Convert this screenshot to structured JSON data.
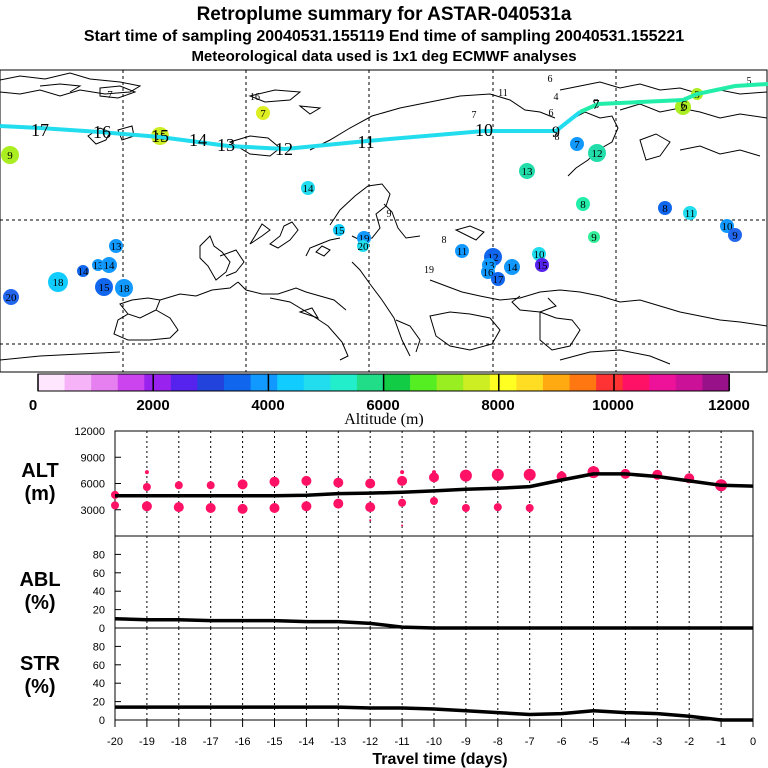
{
  "header": {
    "title": "Retroplume summary for ASTAR-040531a",
    "line2": "Start time of sampling 20040531.155119     End time of sampling 20040531.155221",
    "line3": "Meteorological data used is 1x1 deg ECMWF analyses"
  },
  "colorbar": {
    "title": "Altitude (m)",
    "tick_labels": [
      "0",
      "2000",
      "4000",
      "6000",
      "8000",
      "10000",
      "12000"
    ],
    "colors": [
      "#ffe6ff",
      "#f7b3f7",
      "#e680f0",
      "#cc44ee",
      "#9922ee",
      "#5522ee",
      "#2244dd",
      "#1166ee",
      "#1199ff",
      "#11ccff",
      "#22ddee",
      "#22eecc",
      "#22dd88",
      "#11cc44",
      "#55ee22",
      "#99ee22",
      "#ccee22",
      "#ffff22",
      "#ffdd22",
      "#ffaa11",
      "#ff7711",
      "#ff3333",
      "#ff1166",
      "#ee1199",
      "#cc1199",
      "#991188"
    ]
  },
  "map": {
    "tracks": [
      {
        "name": "cyan-track",
        "color": "#22ddee",
        "labels": [
          "17",
          "16",
          "15",
          "14",
          "13",
          "12",
          "11",
          "10",
          "9",
          "8",
          "7"
        ]
      },
      {
        "name": "green-track",
        "color": "#22eeaa",
        "labels": [
          "7",
          "6",
          "5",
          "4",
          "3",
          "2"
        ]
      }
    ],
    "markers": [
      {
        "label": "9",
        "color": "#aaee22"
      },
      {
        "label": "15",
        "color": "#ccee22"
      },
      {
        "label": "7",
        "color": "#ddee22"
      },
      {
        "label": "16",
        "color": "#ccee22"
      },
      {
        "label": "11",
        "color": "#ffee22"
      },
      {
        "label": "6",
        "color": "#ddee22"
      },
      {
        "label": "4",
        "color": "#22dd88"
      },
      {
        "label": "7",
        "color": "#aaee22"
      },
      {
        "label": "6",
        "color": "#aaee22"
      },
      {
        "label": "9",
        "color": "#22ddee"
      },
      {
        "label": "8",
        "color": "#ffffff"
      },
      {
        "label": "7",
        "color": "#1199ff"
      },
      {
        "label": "12",
        "color": "#22ddaa"
      },
      {
        "label": "13",
        "color": "#22ddaa"
      },
      {
        "label": "14",
        "color": "#22ddee"
      },
      {
        "label": "8",
        "color": "#22eeaa"
      },
      {
        "label": "9",
        "color": "#33ee99"
      },
      {
        "label": "8",
        "color": "#1166ee"
      },
      {
        "label": "11",
        "color": "#22ddee"
      },
      {
        "label": "10",
        "color": "#1199ff"
      },
      {
        "label": "9",
        "color": "#2266ee"
      },
      {
        "label": "2",
        "color": "#aaee22"
      },
      {
        "label": "3",
        "color": "#aaee22"
      },
      {
        "label": "5",
        "color": "#ffff22"
      },
      {
        "label": "15",
        "color": "#11ccff"
      },
      {
        "label": "19",
        "color": "#1199ff"
      },
      {
        "label": "20",
        "color": "#22ddee"
      },
      {
        "label": "9",
        "color": "#ffffff"
      },
      {
        "label": "8",
        "color": "#ffffff"
      },
      {
        "label": "11",
        "color": "#1199ff"
      },
      {
        "label": "12",
        "color": "#1166ee"
      },
      {
        "label": "13",
        "color": "#1199ff"
      },
      {
        "label": "16",
        "color": "#1199ff"
      },
      {
        "label": "14",
        "color": "#1199ff"
      },
      {
        "label": "10",
        "color": "#22ddee"
      },
      {
        "label": "15",
        "color": "#5522ee"
      },
      {
        "label": "18",
        "color": "#11ccff"
      },
      {
        "label": "13",
        "color": "#1199ff"
      },
      {
        "label": "13",
        "color": "#1199ff"
      },
      {
        "label": "14",
        "color": "#1166ee"
      },
      {
        "label": "14",
        "color": "#1199ff"
      },
      {
        "label": "15",
        "color": "#1166ee"
      },
      {
        "label": "18",
        "color": "#1199ff"
      },
      {
        "label": "17",
        "color": "#1166ee"
      },
      {
        "label": "19",
        "color": "#2244dd"
      },
      {
        "label": "20",
        "color": "#2266ee"
      }
    ]
  },
  "chart_data": {
    "type": "line",
    "xlabel": "Travel time (days)",
    "x": [
      -20,
      -19,
      -18,
      -17,
      -16,
      -15,
      -14,
      -13,
      -12,
      -11,
      -10,
      -9,
      -8,
      -7,
      -6,
      -5,
      -4,
      -3,
      -2,
      -1,
      0
    ],
    "xtick_labels": [
      "-20",
      "-19",
      "-18",
      "-17",
      "-16",
      "-15",
      "-14",
      "-13",
      "-12",
      "-11",
      "-10",
      "-9",
      "-8",
      "-7",
      "-6",
      "-5",
      "-4",
      "-3",
      "-2",
      "-1",
      "0"
    ],
    "panels": [
      {
        "id": "alt",
        "label_line1": "ALT",
        "label_line2": "(m)",
        "ylim": [
          0,
          12000
        ],
        "yticks": [
          3000,
          6000,
          9000,
          12000
        ],
        "ytick_labels": [
          "3000",
          "6000",
          "9000",
          "12000"
        ],
        "series": [
          {
            "name": "mean altitude",
            "values": [
              4600,
              4600,
              4600,
              4600,
              4600,
              4600,
              4650,
              4850,
              4900,
              5000,
              5150,
              5350,
              5450,
              5650,
              6400,
              7100,
              7100,
              6800,
              6300,
              5800,
              5700
            ]
          }
        ],
        "scatter": {
          "color": "#ff1166",
          "x": [
            -19,
            -18,
            -17,
            -16,
            -15,
            -14,
            -13,
            -12,
            -11,
            -10,
            -9,
            -8,
            -7,
            -6,
            -5,
            -4,
            -3,
            -2,
            -1,
            -19,
            -18,
            -17,
            -16,
            -15,
            -14,
            -13,
            -12,
            -11,
            -10,
            -9,
            -8,
            -7,
            -19,
            -11,
            -10,
            -8,
            -7,
            -6,
            -12,
            -11,
            -20,
            -20
          ],
          "y": [
            5600,
            5800,
            5800,
            5900,
            6200,
            6300,
            6100,
            6000,
            6300,
            6700,
            6900,
            7000,
            7000,
            6800,
            7300,
            7100,
            7000,
            6600,
            5800,
            3400,
            3300,
            3200,
            3100,
            3200,
            3400,
            3700,
            3300,
            3800,
            4000,
            3200,
            3300,
            3200,
            7300,
            7300,
            7300,
            6500,
            7200,
            7200,
            1800,
            1200,
            4700,
            3500
          ],
          "r": [
            4,
            4,
            4,
            5,
            5,
            5,
            5,
            5,
            5,
            5,
            6,
            6,
            6,
            5,
            6,
            5,
            5,
            5,
            6,
            5,
            5,
            5,
            5,
            5,
            5,
            5,
            5,
            4,
            4,
            4,
            4,
            4,
            2,
            2,
            2,
            2,
            2,
            2,
            1,
            1,
            4,
            4
          ]
        }
      },
      {
        "id": "abl",
        "label_line1": "ABL",
        "label_line2": "(%)",
        "ylim": [
          0,
          100
        ],
        "yticks": [
          0,
          20,
          40,
          60,
          80
        ],
        "ytick_labels": [
          "0",
          "20",
          "40",
          "60",
          "80"
        ],
        "series": [
          {
            "name": "ABL fraction",
            "values": [
              10,
              9,
              9,
              8,
              8,
              8,
              7,
              7,
              5,
              1,
              0,
              0,
              0,
              0,
              0,
              0,
              0,
              0,
              0,
              0,
              0
            ]
          }
        ]
      },
      {
        "id": "str",
        "label_line1": "STR",
        "label_line2": "(%)",
        "ylim": [
          0,
          100
        ],
        "yticks": [
          0,
          20,
          40,
          60,
          80
        ],
        "ytick_labels": [
          "0",
          "20",
          "40",
          "60",
          "80"
        ],
        "series": [
          {
            "name": "stratospheric fraction",
            "values": [
              14,
              14,
              14,
              14,
              14,
              14,
              14,
              14,
              13,
              13,
              12,
              10,
              8,
              6,
              7,
              10,
              8,
              7,
              4,
              0,
              0
            ]
          }
        ]
      }
    ]
  }
}
